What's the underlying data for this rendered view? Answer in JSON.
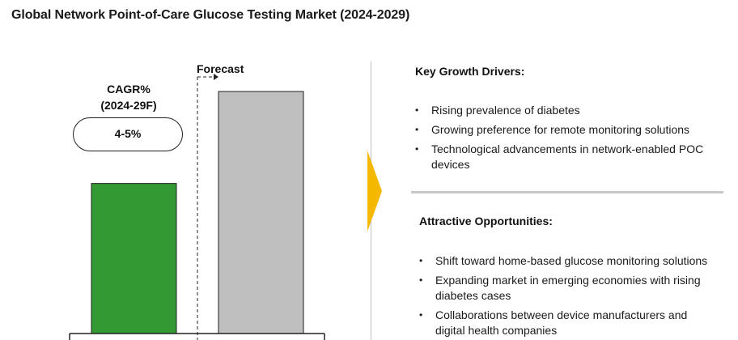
{
  "title": "Global Network Point-of-Care Glucose Testing Market (2024-2029)",
  "cagr": {
    "label_line1": "CAGR%",
    "label_line2": "(2024-29F)",
    "value": "4-5%"
  },
  "forecast_label": "Forecast",
  "colors": {
    "actual_bar": "#339933",
    "forecast_bar": "#bfbfbf",
    "arrow": "#f5b800"
  },
  "chart_data": {
    "type": "bar",
    "categories": [
      "",
      ""
    ],
    "values": [
      62,
      100
    ],
    "value_scale": "relative (forecast bar = 100)",
    "colors": [
      "#339933",
      "#bfbfbf"
    ],
    "title": "",
    "xlabel": "",
    "ylabel": ""
  },
  "growth_drivers": {
    "title": "Key Growth Drivers:",
    "items": [
      "Rising prevalence of diabetes",
      "Growing preference for remote monitoring solutions",
      "Technological advancements in network-enabled POC devices"
    ]
  },
  "opportunities": {
    "title": "Attractive Opportunities:",
    "items": [
      "Shift toward home-based glucose monitoring solutions",
      "Expanding market in emerging economies with rising diabetes cases",
      "Collaborations between device manufacturers and digital health companies"
    ]
  },
  "bullet_glyph": "•"
}
